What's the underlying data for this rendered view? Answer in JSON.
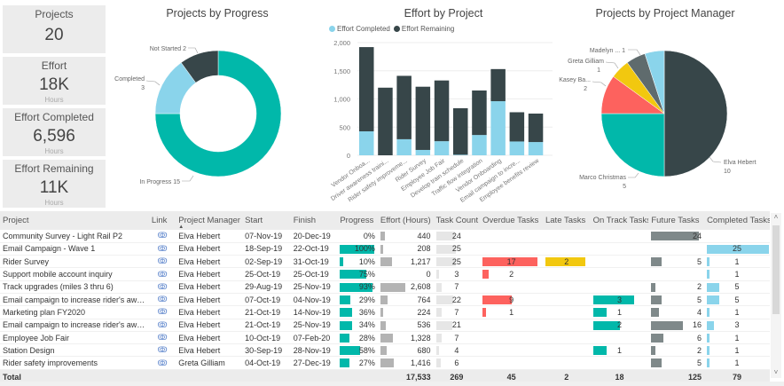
{
  "cards": [
    {
      "title": "Projects",
      "value": "20",
      "sub": ""
    },
    {
      "title": "Effort",
      "value": "18K",
      "sub": "Hours"
    },
    {
      "title": "Effort Completed",
      "value": "6,596",
      "sub": "Hours"
    },
    {
      "title": "Effort Remaining",
      "value": "11K",
      "sub": "Hours"
    }
  ],
  "colors": {
    "teal": "#01b8aa",
    "dark": "#374649",
    "light_blue": "#8ad4eb",
    "red": "#fd625e",
    "yellow": "#f2c80f",
    "grey": "#5f6b6d",
    "bar_grey": "#b3b3b3",
    "future_grey": "#7f898a"
  },
  "chart_data": [
    {
      "type": "pie",
      "variant": "donut",
      "title": "Projects by Progress",
      "slices": [
        {
          "label": "In Progress",
          "value": 15,
          "color": "#01b8aa"
        },
        {
          "label": "Completed",
          "value": 3,
          "color": "#8ad4eb"
        },
        {
          "label": "Not Started",
          "value": 2,
          "color": "#374649"
        }
      ],
      "labels": [
        "Not Started 2",
        "Completed",
        "3",
        "In Progress 15"
      ]
    },
    {
      "type": "bar",
      "stacked": true,
      "title": "Effort by Project",
      "legend": [
        "Effort Completed",
        "Effort Remaining"
      ],
      "legend_position": "top-left",
      "categories": [
        "Vendor Onboa...",
        "Driver awareness traini...",
        "Rider safety improveme...",
        "Rider Survey",
        "Employee Job Fair",
        "Develop train schedule",
        "Traffic flow integration",
        "Vendor Onboarding",
        "Email campaign to incre...",
        "Employee benefits review"
      ],
      "series": [
        {
          "name": "Effort Completed",
          "color": "#8ad4eb",
          "values": [
            425,
            0,
            285,
            95,
            250,
            10,
            360,
            960,
            245,
            235
          ]
        },
        {
          "name": "Effort Remaining",
          "color": "#374649",
          "values": [
            1495,
            1200,
            1125,
            1122,
            1078,
            825,
            790,
            570,
            519,
            505
          ]
        }
      ],
      "yticks": [
        "0",
        "500",
        "1,000",
        "1,500",
        "2,000"
      ],
      "ylim": [
        0,
        2000
      ],
      "grid": true
    },
    {
      "type": "pie",
      "title": "Projects by Project Manager",
      "slices": [
        {
          "label": "Elva Hebert",
          "value": 10,
          "color": "#374649"
        },
        {
          "label": "Marco Christmas",
          "value": 5,
          "color": "#01b8aa"
        },
        {
          "label": "Kasey Ba...",
          "value": 2,
          "color": "#fd625e"
        },
        {
          "label": "Greta Gilliam",
          "value": 1,
          "color": "#f2c80f"
        },
        {
          "label": "",
          "value": 1,
          "color": "#5f6b6d"
        },
        {
          "label": "Madelyn ...",
          "value": 1,
          "color": "#8ad4eb"
        }
      ],
      "labels": [
        "Madelyn ... 1",
        "Greta Gilliam",
        "1",
        "Kasey Ba...",
        "2",
        "Elva Hebert",
        "10",
        "Marco Christmas",
        "5"
      ]
    }
  ],
  "table": {
    "headers": [
      "Project",
      "Link",
      "Project Manager",
      "Start",
      "Finish",
      "Progress",
      "Effort (Hours)",
      "Task Count",
      "Overdue Tasks",
      "Late Tasks",
      "On Track Tasks",
      "Future Tasks",
      "Completed Tasks"
    ],
    "sort_indicator": "▲",
    "link_icon": "🔗",
    "rows": [
      {
        "project": "Community Survey - Light Rail P2",
        "manager": "Elva Hebert",
        "start": "07-Nov-19",
        "finish": "20-Dec-19",
        "progress": 0,
        "progress_label": "0%",
        "effort": 440,
        "effort_label": "440",
        "tasks": 24,
        "overdue": null,
        "late": null,
        "ontrack": null,
        "future": 24,
        "completed": null
      },
      {
        "project": "Email Campaign - Wave 1",
        "manager": "Elva Hebert",
        "start": "18-Sep-19",
        "finish": "22-Oct-19",
        "progress": 100,
        "progress_label": "100%",
        "effort": 208,
        "effort_label": "208",
        "tasks": 25,
        "overdue": null,
        "late": null,
        "ontrack": null,
        "future": null,
        "completed": 25
      },
      {
        "project": "Rider Survey",
        "manager": "Elva Hebert",
        "start": "02-Sep-19",
        "finish": "31-Oct-19",
        "progress": 10,
        "progress_label": "10%",
        "effort": 1217,
        "effort_label": "1,217",
        "tasks": 25,
        "overdue": 17,
        "late": 2,
        "ontrack": null,
        "future": 5,
        "completed": 1
      },
      {
        "project": "Support mobile account inquiry",
        "manager": "Elva Hebert",
        "start": "25-Oct-19",
        "finish": "25-Oct-19",
        "progress": 75,
        "progress_label": "75%",
        "effort": 0,
        "effort_label": "0",
        "tasks": 3,
        "overdue": 2,
        "late": null,
        "ontrack": null,
        "future": null,
        "completed": 1
      },
      {
        "project": "Track upgrades (miles 3 thru 6)",
        "manager": "Elva Hebert",
        "start": "29-Aug-19",
        "finish": "25-Nov-19",
        "progress": 93,
        "progress_label": "93%",
        "effort": 2608,
        "effort_label": "2,608",
        "tasks": 7,
        "overdue": null,
        "late": null,
        "ontrack": null,
        "future": 2,
        "completed": 5
      },
      {
        "project": "Email campaign to increase rider's awaren...",
        "manager": "Elva Hebert",
        "start": "07-Oct-19",
        "finish": "04-Nov-19",
        "progress": 29,
        "progress_label": "29%",
        "effort": 764,
        "effort_label": "764",
        "tasks": 22,
        "overdue": 9,
        "late": null,
        "ontrack": 3,
        "future": 5,
        "completed": 5
      },
      {
        "project": "Marketing plan FY2020",
        "manager": "Elva Hebert",
        "start": "21-Oct-19",
        "finish": "14-Nov-19",
        "progress": 36,
        "progress_label": "36%",
        "effort": 224,
        "effort_label": "224",
        "tasks": 7,
        "overdue": 1,
        "late": null,
        "ontrack": 1,
        "future": 4,
        "completed": 1
      },
      {
        "project": "Email campaign to increase rider's awaren...",
        "manager": "Elva Hebert",
        "start": "21-Oct-19",
        "finish": "25-Nov-19",
        "progress": 34,
        "progress_label": "34%",
        "effort": 536,
        "effort_label": "536",
        "tasks": 21,
        "overdue": null,
        "late": null,
        "ontrack": 2,
        "future": 16,
        "completed": 3
      },
      {
        "project": "Employee Job Fair",
        "manager": "Elva Hebert",
        "start": "10-Oct-19",
        "finish": "07-Feb-20",
        "progress": 28,
        "progress_label": "28%",
        "effort": 1328,
        "effort_label": "1,328",
        "tasks": 7,
        "overdue": null,
        "late": null,
        "ontrack": null,
        "future": 6,
        "completed": 1
      },
      {
        "project": "Station Design",
        "manager": "Elva Hebert",
        "start": "30-Sep-19",
        "finish": "28-Nov-19",
        "progress": 58,
        "progress_label": "58%",
        "effort": 680,
        "effort_label": "680",
        "tasks": 4,
        "overdue": null,
        "late": null,
        "ontrack": 1,
        "future": 2,
        "completed": 1
      },
      {
        "project": "Rider safety improvements",
        "manager": "Greta Gilliam",
        "start": "04-Oct-19",
        "finish": "27-Dec-19",
        "progress": 27,
        "progress_label": "27%",
        "effort": 1416,
        "effort_label": "1,416",
        "tasks": 6,
        "overdue": null,
        "late": null,
        "ontrack": null,
        "future": 5,
        "completed": 1
      }
    ],
    "totals": {
      "label": "Total",
      "effort": "17,533",
      "tasks": "269",
      "overdue": "45",
      "late": "2",
      "ontrack": "18",
      "future": "125",
      "completed": "79"
    },
    "maxes": {
      "effort": 2608,
      "tasks": 25,
      "overdue": 17,
      "late": 2,
      "ontrack": 3,
      "future": 24,
      "completed": 25
    }
  },
  "scrollbar": {
    "up": "˄",
    "down": "˅"
  }
}
